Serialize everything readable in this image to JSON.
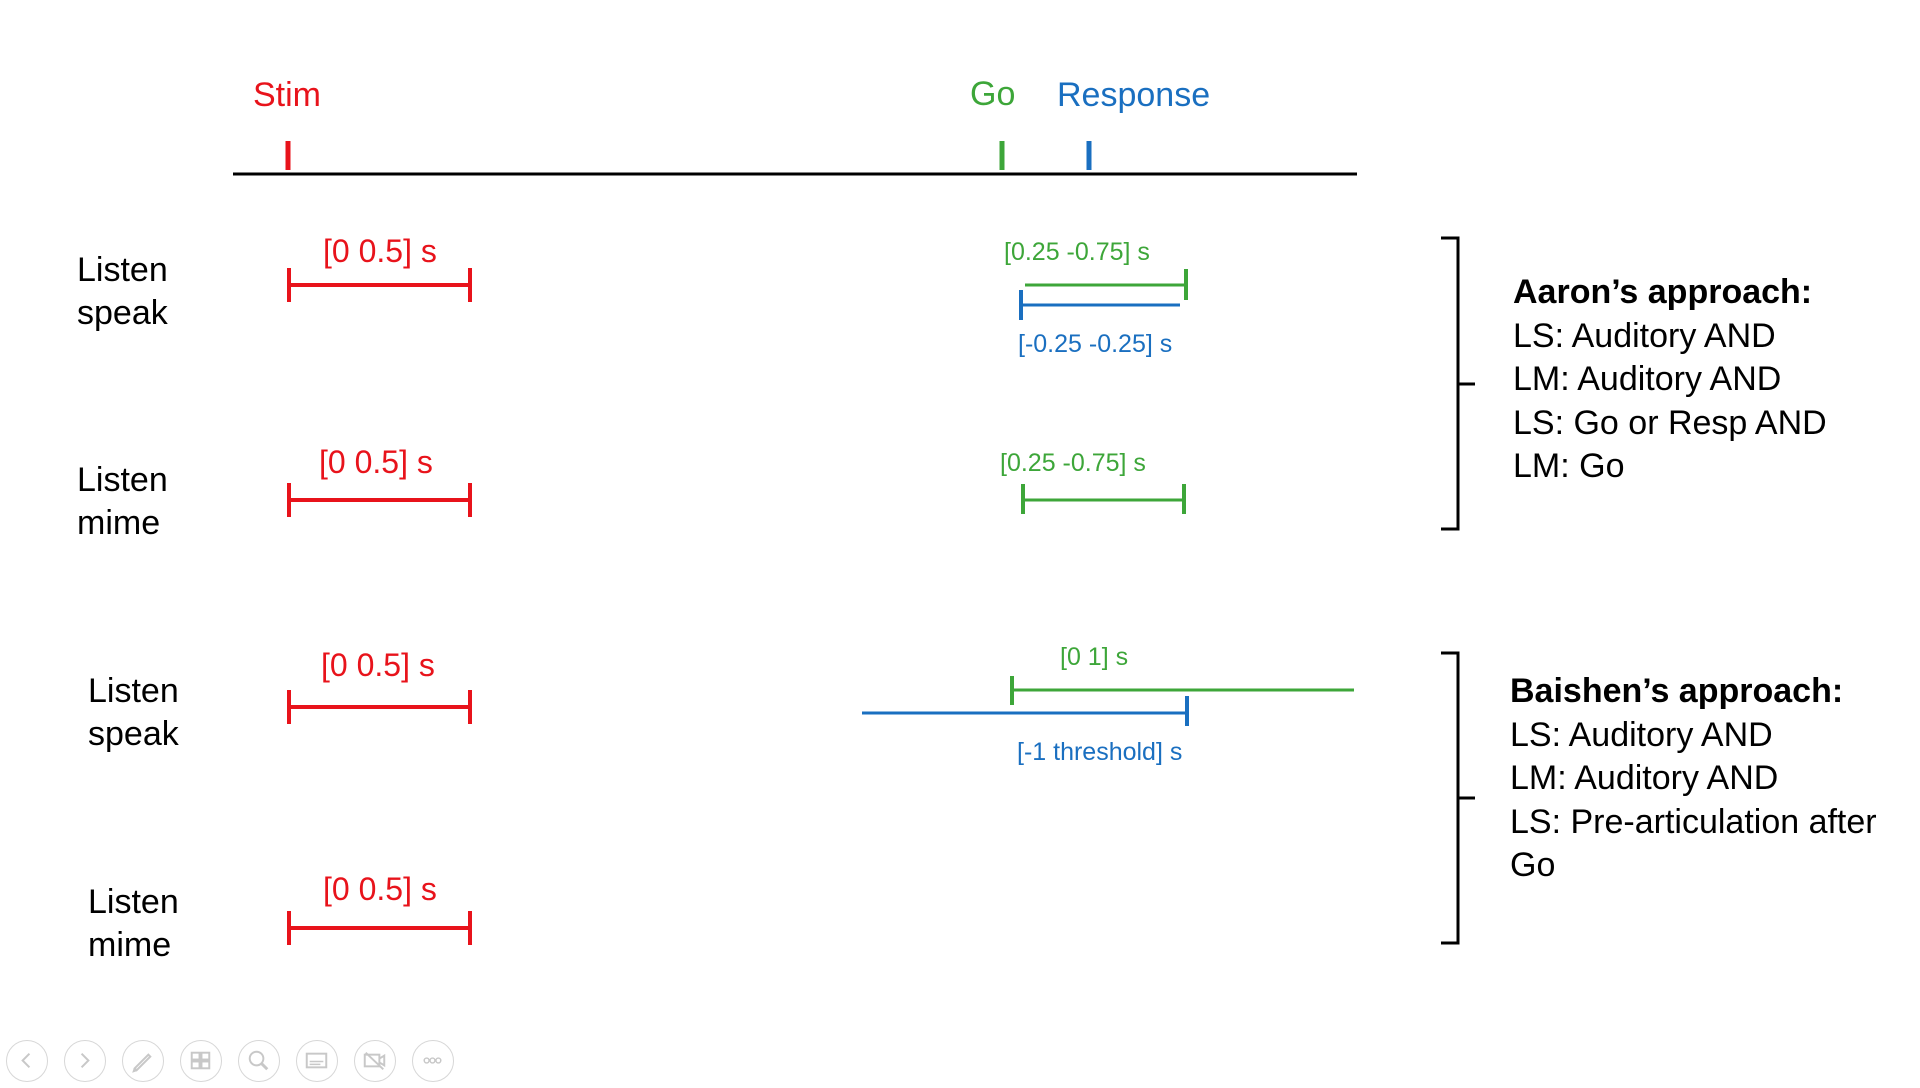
{
  "timeline": {
    "stim": "Stim",
    "go": "Go",
    "response": "Response"
  },
  "rows": [
    {
      "label_line1": "Listen",
      "label_line2": "speak",
      "stim_window": "[0 0.5] s",
      "go_window": "[0.25 -0.75] s",
      "resp_window": "[-0.25 -0.25] s"
    },
    {
      "label_line1": "Listen",
      "label_line2": "mime",
      "stim_window": "[0 0.5] s",
      "go_window": "[0.25 -0.75] s"
    },
    {
      "label_line1": "Listen",
      "label_line2": "speak",
      "stim_window": "[0 0.5] s",
      "go_window": "[0 1] s",
      "resp_window": "[-1 threshold] s"
    },
    {
      "label_line1": "Listen",
      "label_line2": "mime",
      "stim_window": "[0 0.5] s"
    }
  ],
  "approaches": [
    {
      "title": "Aaron’s approach:",
      "lines": [
        "LS: Auditory AND",
        "LM: Auditory AND",
        "LS: Go or Resp AND",
        "LM: Go"
      ]
    },
    {
      "title": "Baishen’s approach:",
      "lines": [
        "LS: Auditory AND",
        "LM: Auditory AND",
        "LS: Pre-articulation after",
        "Go"
      ]
    }
  ],
  "colors": {
    "stim": "#e8131b",
    "go": "#3da639",
    "response": "#1a6fc0"
  },
  "controls": [
    "previous-icon",
    "next-icon",
    "pen-icon",
    "slides-icon",
    "zoom-icon",
    "subtitles-icon",
    "camera-off-icon",
    "more-icon"
  ]
}
